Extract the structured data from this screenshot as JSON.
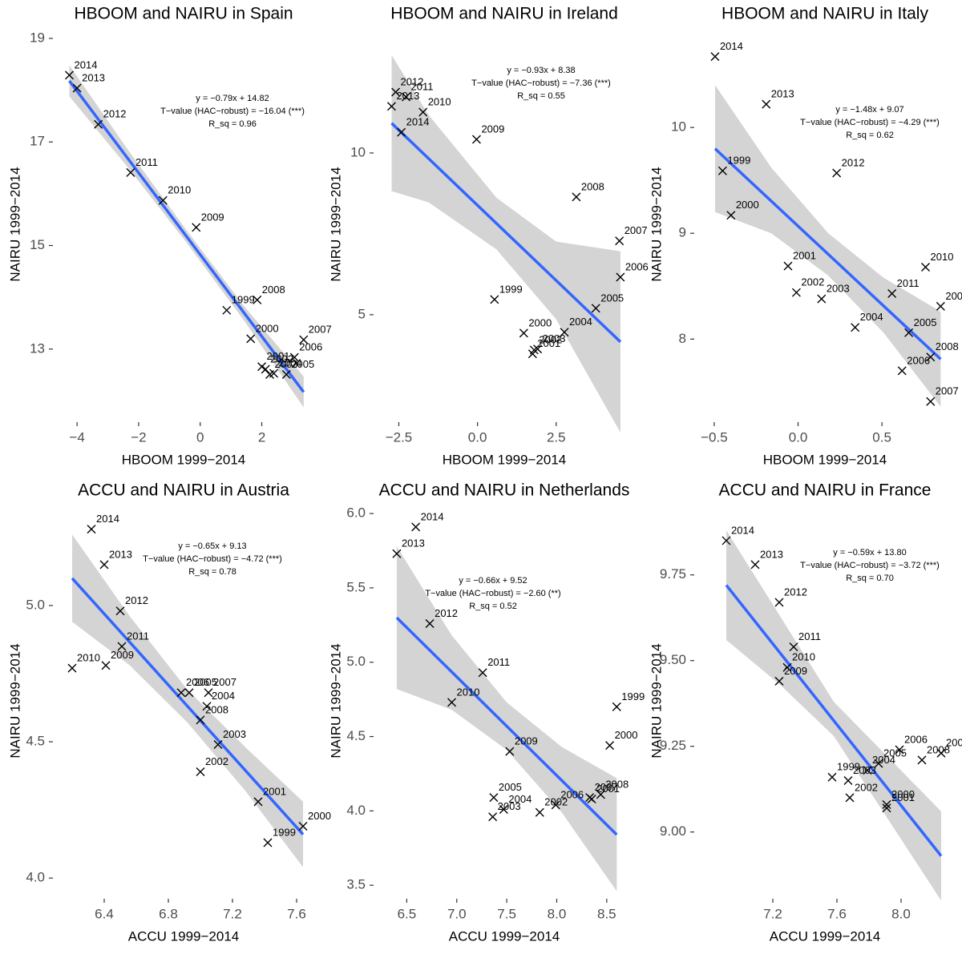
{
  "chart_data": [
    {
      "type": "scatter",
      "title": "HBOOM and NAIRU in Spain",
      "xlabel": "HBOOM 1999−2014",
      "ylabel": "NAIRU 1999−2014",
      "annotation": [
        "y = −0.79x + 14.82",
        "T−value (HAC−robust) = −16.04 (***)",
        "R_sq = 0.96"
      ],
      "labels": [
        "1999",
        "2000",
        "2001",
        "2002",
        "2003",
        "2004",
        "2005",
        "2006",
        "2007",
        "2008",
        "2009",
        "2010",
        "2011",
        "2012",
        "2013",
        "2014"
      ],
      "x": [
        0.86,
        1.64,
        2.0,
        2.12,
        2.26,
        2.39,
        2.8,
        3.06,
        3.36,
        1.85,
        -0.13,
        -1.21,
        -2.26,
        -3.31,
        -4.0,
        -4.25
      ],
      "y": [
        13.75,
        13.2,
        12.66,
        12.61,
        12.51,
        12.53,
        12.51,
        12.84,
        13.18,
        13.95,
        15.35,
        15.87,
        16.41,
        17.34,
        18.04,
        18.29
      ],
      "color": "#000000",
      "fit": {
        "x": [
          -4.25,
          3.36
        ],
        "y": [
          18.18,
          12.17
        ],
        "color": "#3366ff"
      },
      "band": {
        "x": [
          -4.25,
          -2.35,
          -0.45,
          1.45,
          3.36
        ],
        "lower": [
          17.88,
          16.51,
          15.06,
          13.53,
          11.87
        ],
        "upper": [
          18.48,
          16.85,
          15.3,
          13.81,
          12.47
        ],
        "color": "#cccccc"
      },
      "xlim": [
        -4.68,
        3.6
      ],
      "ylim": [
        11.62,
        19.2
      ],
      "xticks": [
        {
          "value": -4,
          "label": "−4"
        },
        {
          "value": -2,
          "label": "−2"
        },
        0,
        2
      ],
      "yticks": [
        13,
        15,
        17,
        19
      ]
    },
    {
      "type": "scatter",
      "title": "HBOOM and NAIRU in Ireland",
      "xlabel": "HBOOM 1999−2014",
      "ylabel": "NAIRU 1999−2014",
      "annotation": [
        "y = −0.93x + 8.38",
        "T−value (HAC−robust) = −7.36 (***)",
        "R_sq = 0.55"
      ],
      "labels": [
        "1999",
        "2000",
        "2001",
        "2002",
        "2003",
        "2004",
        "2005",
        "2006",
        "2007",
        "2008",
        "2009",
        "2010",
        "2011",
        "2012",
        "2013",
        "2014"
      ],
      "x": [
        0.54,
        1.47,
        1.75,
        1.8,
        1.91,
        2.76,
        3.76,
        4.54,
        4.51,
        3.14,
        -0.03,
        -1.73,
        -2.27,
        -2.6,
        -2.73,
        -2.42
      ],
      "y": [
        5.47,
        4.43,
        3.79,
        3.91,
        3.94,
        4.46,
        5.2,
        6.16,
        7.28,
        8.64,
        10.42,
        11.26,
        11.73,
        11.88,
        11.44,
        10.64
      ],
      "color": "#000000",
      "fit": {
        "x": [
          -2.73,
          4.54
        ],
        "y": [
          10.92,
          4.16
        ],
        "color": "#3366ff"
      },
      "band": {
        "x": [
          -2.73,
          -1.55,
          0.6,
          2.5,
          4.54
        ],
        "lower": [
          8.82,
          8.47,
          7.02,
          4.86,
          1.36
        ],
        "upper": [
          13.02,
          11.17,
          8.62,
          7.26,
          6.96
        ],
        "color": "#cccccc"
      },
      "xlim": [
        -3.2,
        4.9
      ],
      "ylim": [
        1.73,
        13.86
      ],
      "xticks": [
        {
          "value": -2.5,
          "label": "−2.5"
        },
        {
          "value": 0,
          "label": "0.0"
        },
        2.5
      ],
      "yticks": [
        5,
        10
      ]
    },
    {
      "type": "scatter",
      "title": "HBOOM and NAIRU in Italy",
      "xlabel": "HBOOM 1999−2014",
      "ylabel": "NAIRU 1999−2014",
      "annotation": [
        "y = −1.48x + 9.07",
        "T−value (HAC−robust) = −4.29 (***)",
        "R_sq = 0.62"
      ],
      "labels": [
        "1999",
        "2000",
        "2001",
        "2002",
        "2003",
        "2004",
        "2005",
        "2006",
        "2007",
        "2008",
        "2009",
        "2010",
        "2011",
        "2012",
        "2013",
        "2014"
      ],
      "x": [
        -0.45,
        -0.4,
        -0.06,
        -0.01,
        0.14,
        0.34,
        0.66,
        0.62,
        0.79,
        0.79,
        0.85,
        0.76,
        0.56,
        0.23,
        -0.19,
        -0.495
      ],
      "y": [
        9.59,
        9.17,
        8.69,
        8.44,
        8.38,
        8.11,
        8.06,
        7.7,
        7.41,
        7.83,
        8.31,
        8.68,
        8.43,
        9.57,
        10.22,
        10.67
      ],
      "color": "#000000",
      "fit": {
        "x": [
          -0.495,
          0.85
        ],
        "y": [
          9.8,
          7.81
        ],
        "color": "#3366ff"
      },
      "band": {
        "x": [
          -0.495,
          -0.16,
          0.18,
          0.51,
          0.85
        ],
        "lower": [
          9.2,
          9.0,
          8.6,
          8.06,
          7.36
        ],
        "upper": [
          10.4,
          9.62,
          9.0,
          8.58,
          8.26
        ],
        "color": "#cccccc"
      },
      "xlim": [
        -0.6,
        0.92
      ],
      "ylim": [
        7.23,
        10.94
      ],
      "xticks": [
        {
          "value": -0.5,
          "label": "−0.5"
        },
        {
          "value": 0,
          "label": "0.0"
        },
        0.5
      ],
      "yticks": [
        8,
        9,
        10
      ]
    },
    {
      "type": "scatter",
      "title": "ACCU and NAIRU in Austria",
      "xlabel": "ACCU 1999−2014",
      "ylabel": "NAIRU 1999−2014",
      "annotation": [
        "y = −0.65x + 9.13",
        "T−value (HAC−robust) = −4.72 (***)",
        "R_sq = 0.78"
      ],
      "labels": [
        "1999",
        "2000",
        "2001",
        "2002",
        "2003",
        "2004",
        "2005",
        "2006",
        "2007",
        "2008",
        "2009",
        "2010",
        "2011",
        "2012",
        "2013",
        "2014"
      ],
      "x": [
        7.42,
        7.64,
        7.36,
        7.0,
        7.11,
        7.04,
        6.93,
        6.88,
        7.05,
        7.0,
        6.41,
        6.2,
        6.51,
        6.5,
        6.4,
        6.32
      ],
      "y": [
        4.13,
        4.19,
        4.28,
        4.39,
        4.49,
        4.63,
        4.68,
        4.68,
        4.68,
        4.58,
        4.78,
        4.77,
        4.85,
        4.98,
        5.15,
        5.28
      ],
      "color": "#000000",
      "fit": {
        "x": [
          6.2,
          7.64
        ],
        "y": [
          5.1,
          4.16
        ],
        "color": "#3366ff"
      },
      "band": {
        "x": [
          6.2,
          6.56,
          6.92,
          7.28,
          7.64
        ],
        "lower": [
          4.94,
          4.78,
          4.57,
          4.32,
          4.04
        ],
        "upper": [
          5.26,
          4.96,
          4.69,
          4.48,
          4.28
        ],
        "color": "#cccccc"
      },
      "xlim": [
        6.1,
        7.69
      ],
      "ylim": [
        3.93,
        5.37
      ],
      "xticks": [
        6.4,
        6.8,
        7.2,
        7.6
      ],
      "yticks": [
        {
          "value": 4,
          "label": "4.0"
        },
        4.5,
        {
          "value": 5,
          "label": "5.0"
        }
      ]
    },
    {
      "type": "scatter",
      "title": "ACCU and NAIRU in Netherlands",
      "xlabel": "ACCU 1999−2014",
      "ylabel": "NAIRU 1999−2014",
      "annotation": [
        "y = −0.66x + 9.52",
        "T−value (HAC−robust) = −2.60 (**)",
        "R_sq = 0.52"
      ],
      "labels": [
        "1999",
        "2000",
        "2001",
        "2002",
        "2003",
        "2004",
        "2005",
        "2006",
        "2007",
        "2008",
        "2009",
        "2010",
        "2011",
        "2012",
        "2013",
        "2014"
      ],
      "x": [
        8.6,
        8.53,
        8.35,
        7.83,
        7.36,
        7.47,
        7.37,
        7.99,
        8.33,
        8.44,
        7.53,
        6.95,
        7.26,
        6.73,
        6.4,
        6.59
      ],
      "y": [
        4.7,
        4.44,
        4.08,
        3.99,
        3.96,
        4.01,
        4.09,
        4.04,
        4.09,
        4.11,
        4.4,
        4.73,
        4.93,
        5.26,
        5.73,
        5.91
      ],
      "color": "#000000",
      "fit": {
        "x": [
          6.4,
          8.6
        ],
        "y": [
          5.3,
          3.84
        ],
        "color": "#3366ff"
      },
      "band": {
        "x": [
          6.4,
          6.95,
          7.5,
          8.05,
          8.6
        ],
        "lower": [
          4.82,
          4.68,
          4.41,
          3.99,
          3.46
        ],
        "upper": [
          5.78,
          5.18,
          4.73,
          4.43,
          4.22
        ],
        "color": "#cccccc"
      },
      "xlim": [
        6.2,
        8.75
      ],
      "ylim": [
        3.42,
        6.06
      ],
      "xticks": [
        6.5,
        {
          "value": 7,
          "label": "7.0"
        },
        7.5,
        {
          "value": 8,
          "label": "8.0"
        },
        8.5
      ],
      "yticks": [
        3.5,
        {
          "value": 4,
          "label": "4.0"
        },
        4.5,
        {
          "value": 5,
          "label": "5.0"
        },
        5.5,
        {
          "value": 6,
          "label": "6.0"
        }
      ]
    },
    {
      "type": "scatter",
      "title": "ACCU and NAIRU in France",
      "xlabel": "ACCU 1999−2014",
      "ylabel": "NAIRU 1999−2014",
      "annotation": [
        "y = −0.59x + 13.80",
        "T−value (HAC−robust) = −3.72 (***)",
        "R_sq = 0.70"
      ],
      "labels": [
        "1999",
        "2000",
        "2001",
        "2002",
        "2003",
        "2004",
        "2005",
        "2006",
        "2007",
        "2008",
        "2009",
        "2010",
        "2011",
        "2012",
        "2013",
        "2014"
      ],
      "x": [
        7.57,
        7.91,
        7.91,
        7.68,
        7.67,
        7.79,
        7.86,
        7.99,
        8.25,
        8.13,
        7.24,
        7.29,
        7.33,
        7.24,
        7.09,
        6.91
      ],
      "y": [
        9.16,
        9.08,
        9.07,
        9.1,
        9.15,
        9.18,
        9.2,
        9.24,
        9.23,
        9.21,
        9.44,
        9.48,
        9.54,
        9.67,
        9.78,
        9.85
      ],
      "color": "#000000",
      "fit": {
        "x": [
          6.91,
          8.25
        ],
        "y": [
          9.72,
          8.93
        ],
        "color": "#3366ff"
      },
      "band": {
        "x": [
          6.91,
          7.245,
          7.58,
          7.915,
          8.25
        ],
        "lower": [
          9.56,
          9.43,
          9.28,
          9.04,
          8.8
        ],
        "upper": [
          9.88,
          9.63,
          9.38,
          9.22,
          9.06
        ],
        "color": "#cccccc"
      },
      "xlim": [
        6.73,
        8.32
      ],
      "ylim": [
        8.81,
        9.955
      ],
      "xticks": [
        7.2,
        7.6,
        {
          "value": 8,
          "label": "8.0"
        }
      ],
      "yticks": [
        {
          "value": 9,
          "label": "9.00"
        },
        9.25,
        {
          "value": 9.5,
          "label": "9.50"
        },
        9.75
      ]
    }
  ]
}
